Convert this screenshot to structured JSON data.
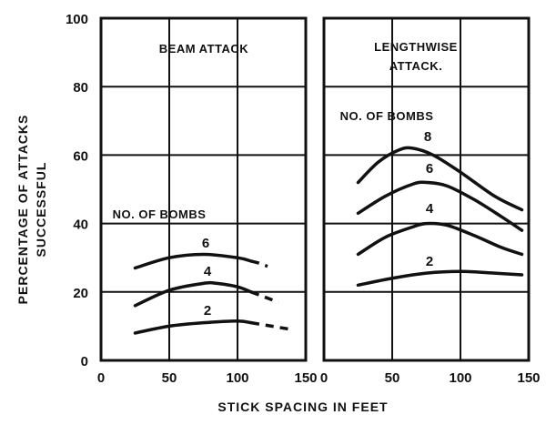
{
  "chart_data": {
    "type": "line",
    "xlabel": "STICK SPACING IN FEET",
    "ylabel": "PERCENTAGE OF ATTACKS SUCCESSFUL",
    "ylabel_lines": [
      "PERCENTAGE OF ATTACKS",
      "SUCCESSFUL"
    ],
    "yticks": [
      "0",
      "20",
      "40",
      "60",
      "80",
      "100"
    ],
    "ylim": [
      0,
      100
    ],
    "grid": true,
    "panels": [
      {
        "title_lines": [
          "BEAM ATTACK"
        ],
        "annotation": "NO. OF BOMBS",
        "xlim": [
          0,
          150
        ],
        "xticks": [
          "0",
          "50",
          "100",
          "150"
        ],
        "series": [
          {
            "name": "6",
            "x": [
              25,
              50,
              75,
              100,
              110
            ],
            "y": [
              27,
              30,
              31,
              30,
              29
            ],
            "dashed": {
              "x": [
                110,
                115,
                122
              ],
              "y": [
                29,
                28.5,
                27.5
              ]
            }
          },
          {
            "name": "4",
            "x": [
              25,
              50,
              75,
              85,
              100,
              110
            ],
            "y": [
              16,
              20.5,
              22.5,
              22.5,
              21.5,
              20
            ],
            "dashed": {
              "x": [
                110,
                120,
                130
              ],
              "y": [
                20,
                18.5,
                17
              ]
            }
          },
          {
            "name": "2",
            "x": [
              25,
              50,
              75,
              100,
              110
            ],
            "y": [
              8,
              10,
              11,
              11.5,
              11
            ],
            "dashed": {
              "x": [
                110,
                125,
                140
              ],
              "y": [
                11,
                10,
                9
              ]
            }
          }
        ]
      },
      {
        "title_lines": [
          "LENGTHWISE",
          "ATTACK."
        ],
        "annotation": "NO. OF BOMBS",
        "xlim": [
          0,
          150
        ],
        "xticks": [
          "0",
          "50",
          "100",
          "150"
        ],
        "series": [
          {
            "name": "8",
            "x": [
              25,
              40,
              55,
              65,
              80,
              100,
              125,
              145
            ],
            "y": [
              52,
              58,
              61.5,
              62,
              60,
              55,
              48,
              44
            ]
          },
          {
            "name": "6",
            "x": [
              25,
              45,
              65,
              75,
              90,
              110,
              130,
              145
            ],
            "y": [
              43,
              48,
              51.5,
              52,
              51,
              47,
              42,
              38
            ]
          },
          {
            "name": "4",
            "x": [
              25,
              45,
              65,
              75,
              90,
              110,
              130,
              145
            ],
            "y": [
              31,
              36,
              39,
              40,
              39.5,
              36.5,
              33,
              31
            ]
          },
          {
            "name": "2",
            "x": [
              25,
              50,
              75,
              100,
              125,
              145
            ],
            "y": [
              22,
              24,
              25.5,
              26,
              25.5,
              25
            ]
          }
        ]
      }
    ]
  }
}
